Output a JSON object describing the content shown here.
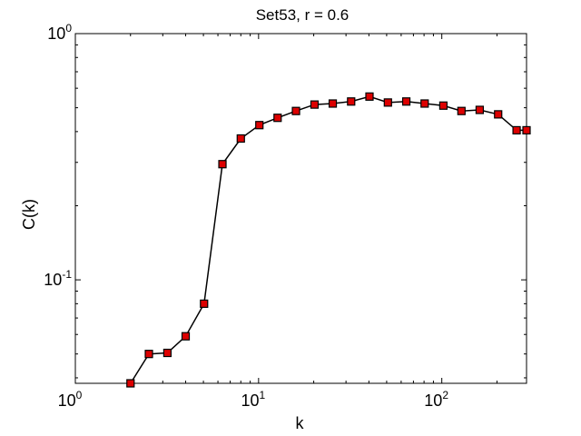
{
  "chart_data": {
    "type": "line",
    "title": "Set53, r = 0.6",
    "xlabel": "k",
    "ylabel": "C(k)",
    "xscale": "log",
    "yscale": "log",
    "xlim": [
      1,
      290
    ],
    "ylim": [
      0.038,
      1
    ],
    "x_ticks": [
      {
        "base": "10",
        "exp": "0",
        "value": 1
      },
      {
        "base": "10",
        "exp": "1",
        "value": 10
      },
      {
        "base": "10",
        "exp": "2",
        "value": 100
      }
    ],
    "y_ticks": [
      {
        "base": "10",
        "exp": "-1",
        "value": 0.1
      },
      {
        "base": "10",
        "exp": "0",
        "value": 1
      }
    ],
    "grid": false,
    "marker": "square",
    "colors": {
      "line": "#000000",
      "marker_fill": "#dd0000",
      "marker_edge": "#000000"
    },
    "series": [
      {
        "x": [
          2.0,
          2.52,
          3.18,
          4.0,
          5.04,
          6.35,
          8.0,
          10.1,
          12.7,
          16.0,
          20.2,
          25.4,
          32.0,
          40.3,
          50.8,
          64.0,
          80.6,
          102,
          128,
          161,
          203,
          256,
          290
        ],
        "y": [
          0.038,
          0.05,
          0.0505,
          0.059,
          0.08,
          0.295,
          0.375,
          0.425,
          0.455,
          0.485,
          0.515,
          0.52,
          0.53,
          0.555,
          0.525,
          0.53,
          0.52,
          0.51,
          0.485,
          0.49,
          0.47,
          0.405,
          0.405
        ]
      }
    ]
  }
}
